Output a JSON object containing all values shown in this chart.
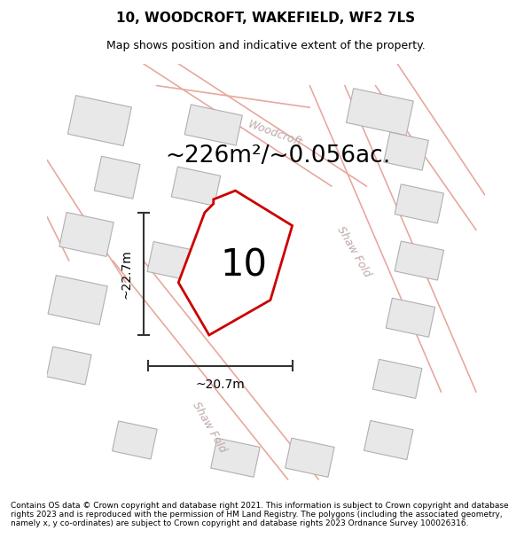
{
  "title": "10, WOODCROFT, WAKEFIELD, WF2 7LS",
  "subtitle": "Map shows position and indicative extent of the property.",
  "area_text": "~226m²/~0.056ac.",
  "number_label": "10",
  "dim_h": "~22.7m",
  "dim_w": "~20.7m",
  "footer": "Contains OS data © Crown copyright and database right 2021. This information is subject to Crown copyright and database rights 2023 and is reproduced with the permission of HM Land Registry. The polygons (including the associated geometry, namely x, y co-ordinates) are subject to Crown copyright and database rights 2023 Ordnance Survey 100026316.",
  "bg_color": "#f7f7f7",
  "building_fill": "#e8e8e8",
  "building_edge": "#b0b0b0",
  "road_line_color": "#e8a89e",
  "highlight_color": "#cc0000",
  "street_label_color": "#c0a8a8",
  "dim_line_color": "#333333",
  "title_fontsize": 11,
  "subtitle_fontsize": 9,
  "area_fontsize": 19,
  "number_fontsize": 30,
  "dim_fontsize": 10,
  "footer_fontsize": 6.5,
  "street_fontsize": 9
}
